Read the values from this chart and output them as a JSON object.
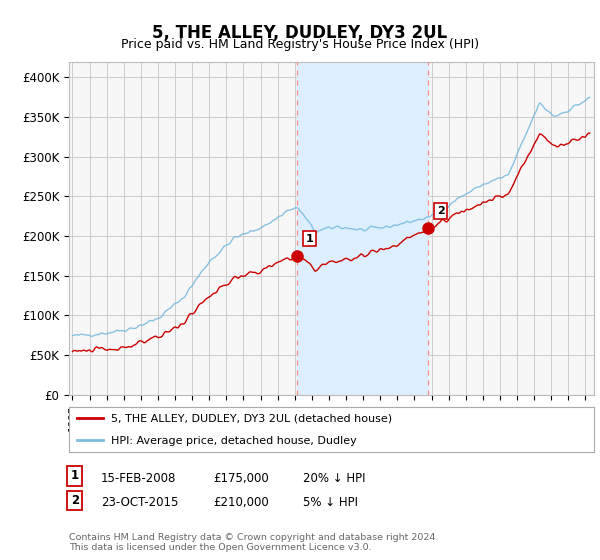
{
  "title": "5, THE ALLEY, DUDLEY, DY3 2UL",
  "subtitle": "Price paid vs. HM Land Registry's House Price Index (HPI)",
  "ylabel_ticks": [
    "£0",
    "£50K",
    "£100K",
    "£150K",
    "£200K",
    "£250K",
    "£300K",
    "£350K",
    "£400K"
  ],
  "ytick_vals": [
    0,
    50000,
    100000,
    150000,
    200000,
    250000,
    300000,
    350000,
    400000
  ],
  "ylim": [
    0,
    420000
  ],
  "xlim_start": 1994.8,
  "xlim_end": 2025.5,
  "sale1_x": 2008.12,
  "sale1_y": 175000,
  "sale2_x": 2015.81,
  "sale2_y": 210000,
  "hpi_color": "#7bbcde",
  "price_color": "#cc0000",
  "shade_color": "#ddeeff",
  "grid_color": "#cccccc",
  "legend_line1": "5, THE ALLEY, DUDLEY, DY3 2UL (detached house)",
  "legend_line2": "HPI: Average price, detached house, Dudley",
  "note_line1": "Contains HM Land Registry data © Crown copyright and database right 2024.",
  "note_line2": "This data is licensed under the Open Government Licence v3.0.",
  "table_row1": [
    "1",
    "15-FEB-2008",
    "£175,000",
    "20% ↓ HPI"
  ],
  "table_row2": [
    "2",
    "23-OCT-2015",
    "£210,000",
    "5% ↓ HPI"
  ],
  "background_color": "#ffffff"
}
